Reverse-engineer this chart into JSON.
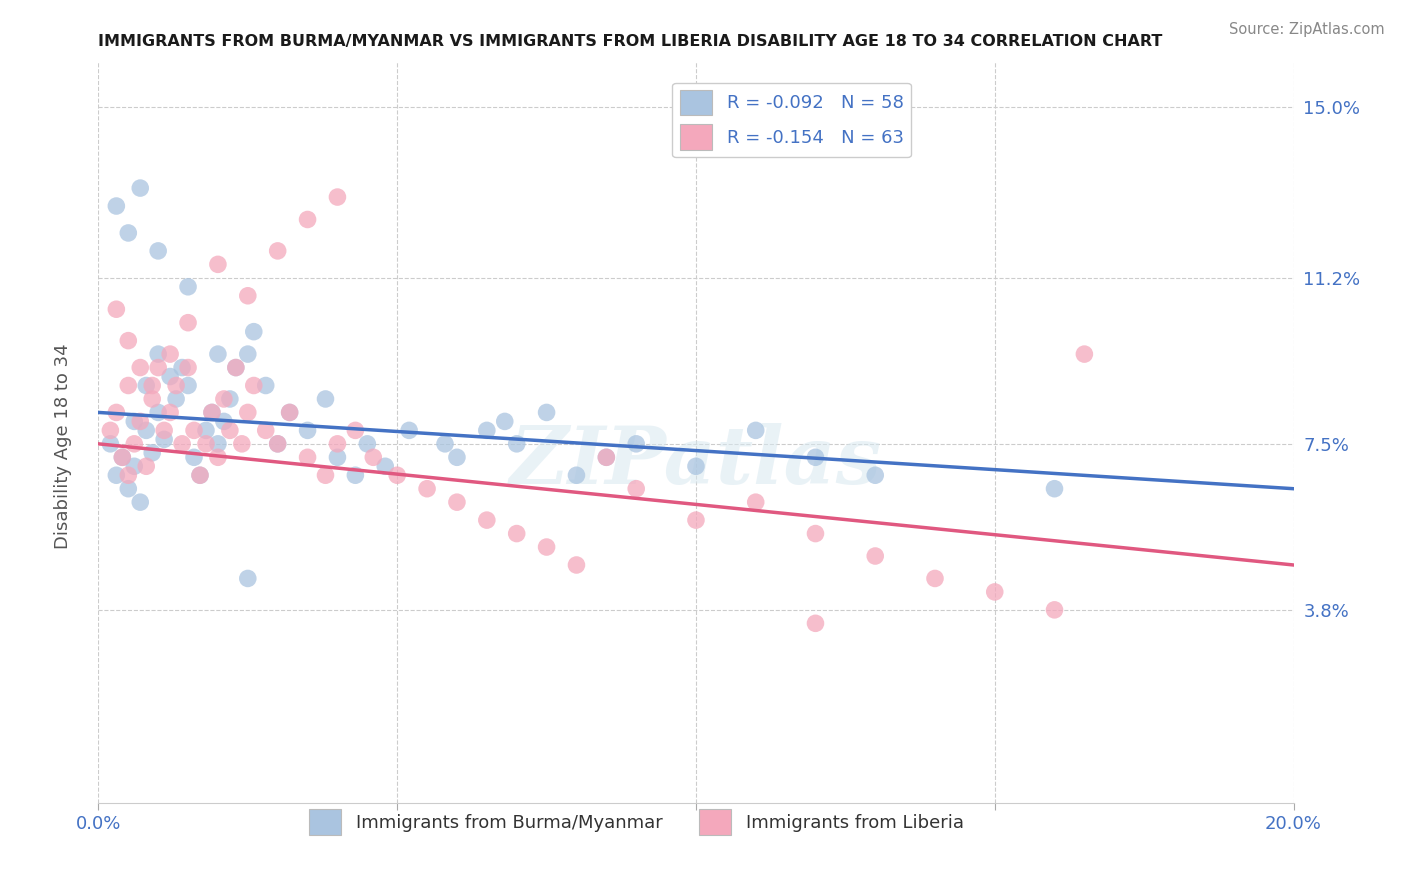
{
  "title": "IMMIGRANTS FROM BURMA/MYANMAR VS IMMIGRANTS FROM LIBERIA DISABILITY AGE 18 TO 34 CORRELATION CHART",
  "source": "Source: ZipAtlas.com",
  "ylabel": "Disability Age 18 to 34",
  "xlim": [
    0.0,
    0.2
  ],
  "ylim": [
    -0.005,
    0.16
  ],
  "yticks": [
    0.038,
    0.075,
    0.112,
    0.15
  ],
  "ytick_labels": [
    "3.8%",
    "7.5%",
    "11.2%",
    "15.0%"
  ],
  "xticks": [
    0.0,
    0.05,
    0.1,
    0.15,
    0.2
  ],
  "xtick_labels": [
    "0.0%",
    "",
    "",
    "",
    "20.0%"
  ],
  "legend1_label": "R = -0.092   N = 58",
  "legend2_label": "R = -0.154   N = 63",
  "series1_name": "Immigrants from Burma/Myanmar",
  "series2_name": "Immigrants from Liberia",
  "color1": "#aac4e0",
  "color2": "#f4a8bc",
  "line_color1": "#4472c4",
  "line_color2": "#e05880",
  "watermark": "ZIPatlas",
  "background_color": "#ffffff",
  "title_color": "#1a1a1a",
  "axis_color": "#4472c4",
  "trend1_start": 0.082,
  "trend1_end": 0.065,
  "trend2_start": 0.075,
  "trend2_end": 0.048,
  "scatter1_x": [
    0.002,
    0.003,
    0.004,
    0.005,
    0.006,
    0.006,
    0.007,
    0.008,
    0.008,
    0.009,
    0.01,
    0.01,
    0.011,
    0.012,
    0.013,
    0.014,
    0.015,
    0.016,
    0.017,
    0.018,
    0.019,
    0.02,
    0.021,
    0.022,
    0.023,
    0.025,
    0.026,
    0.028,
    0.03,
    0.032,
    0.035,
    0.038,
    0.04,
    0.043,
    0.045,
    0.048,
    0.052,
    0.058,
    0.06,
    0.065,
    0.068,
    0.07,
    0.075,
    0.08,
    0.085,
    0.09,
    0.1,
    0.11,
    0.12,
    0.13,
    0.003,
    0.005,
    0.007,
    0.01,
    0.015,
    0.02,
    0.025,
    0.16
  ],
  "scatter1_y": [
    0.075,
    0.068,
    0.072,
    0.065,
    0.08,
    0.07,
    0.062,
    0.088,
    0.078,
    0.073,
    0.095,
    0.082,
    0.076,
    0.09,
    0.085,
    0.092,
    0.088,
    0.072,
    0.068,
    0.078,
    0.082,
    0.075,
    0.08,
    0.085,
    0.092,
    0.095,
    0.1,
    0.088,
    0.075,
    0.082,
    0.078,
    0.085,
    0.072,
    0.068,
    0.075,
    0.07,
    0.078,
    0.075,
    0.072,
    0.078,
    0.08,
    0.075,
    0.082,
    0.068,
    0.072,
    0.075,
    0.07,
    0.078,
    0.072,
    0.068,
    0.128,
    0.122,
    0.132,
    0.118,
    0.11,
    0.095,
    0.045,
    0.065
  ],
  "scatter2_x": [
    0.002,
    0.003,
    0.004,
    0.005,
    0.005,
    0.006,
    0.007,
    0.008,
    0.009,
    0.01,
    0.011,
    0.012,
    0.013,
    0.014,
    0.015,
    0.016,
    0.017,
    0.018,
    0.019,
    0.02,
    0.021,
    0.022,
    0.023,
    0.024,
    0.025,
    0.026,
    0.028,
    0.03,
    0.032,
    0.035,
    0.038,
    0.04,
    0.043,
    0.046,
    0.05,
    0.055,
    0.06,
    0.065,
    0.07,
    0.075,
    0.08,
    0.085,
    0.09,
    0.1,
    0.11,
    0.12,
    0.13,
    0.14,
    0.15,
    0.16,
    0.003,
    0.005,
    0.007,
    0.009,
    0.012,
    0.015,
    0.02,
    0.025,
    0.03,
    0.035,
    0.04,
    0.165,
    0.12
  ],
  "scatter2_y": [
    0.078,
    0.082,
    0.072,
    0.068,
    0.088,
    0.075,
    0.08,
    0.07,
    0.085,
    0.092,
    0.078,
    0.082,
    0.088,
    0.075,
    0.092,
    0.078,
    0.068,
    0.075,
    0.082,
    0.072,
    0.085,
    0.078,
    0.092,
    0.075,
    0.082,
    0.088,
    0.078,
    0.075,
    0.082,
    0.072,
    0.068,
    0.075,
    0.078,
    0.072,
    0.068,
    0.065,
    0.062,
    0.058,
    0.055,
    0.052,
    0.048,
    0.072,
    0.065,
    0.058,
    0.062,
    0.055,
    0.05,
    0.045,
    0.042,
    0.038,
    0.105,
    0.098,
    0.092,
    0.088,
    0.095,
    0.102,
    0.115,
    0.108,
    0.118,
    0.125,
    0.13,
    0.095,
    0.035
  ]
}
